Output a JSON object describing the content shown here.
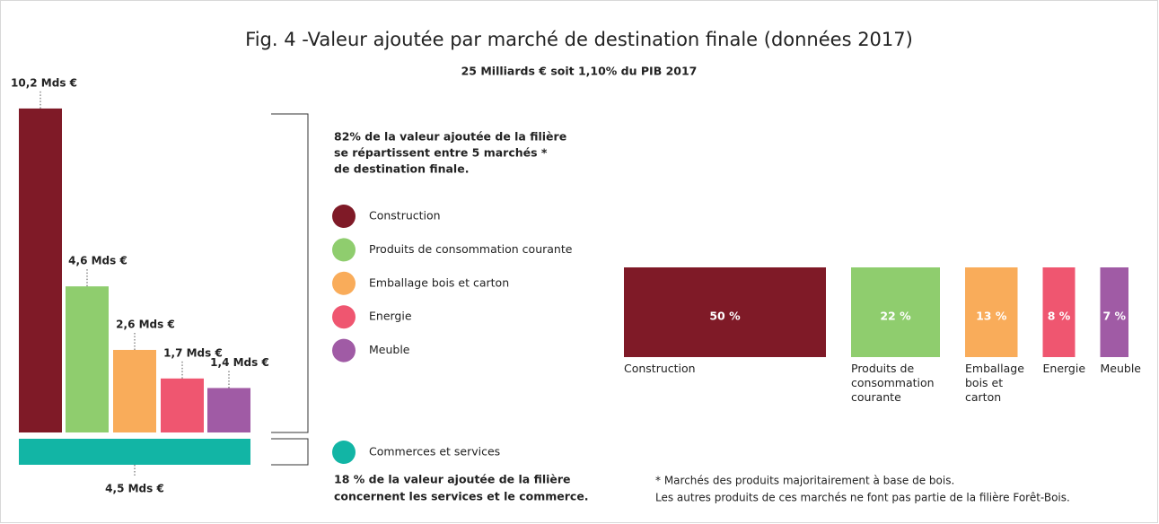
{
  "chart_data": [
    {
      "type": "bar",
      "title": "Fig. 4 -Valeur ajoutée par marché de destination finale (données 2017)",
      "subtitle": "25 Milliards € soit 1,10% du PIB 2017",
      "categories": [
        "Construction",
        "Produits de consommation courante",
        "Emballage bois et carton",
        "Energie",
        "Meuble"
      ],
      "values": [
        10.2,
        4.6,
        2.6,
        1.7,
        1.4
      ],
      "value_labels": [
        "10,2 Mds €",
        "4,6 Mds €",
        "2,6 Mds €",
        "1,7 Mds €",
        "1,4 Mds €"
      ],
      "colors": [
        "#7f1a27",
        "#8fcd6e",
        "#f9ac5a",
        "#ef5670",
        "#a05ba5"
      ],
      "annotation": [
        "82% de la valeur ajoutée de la filière",
        "se répartissent entre 5 marchés *",
        "de destination finale."
      ]
    },
    {
      "type": "hbar",
      "categories": [
        "Commerces et services"
      ],
      "values": [
        4.5
      ],
      "value_labels": [
        "4,5 Mds €"
      ],
      "color": "#12b5a5",
      "annotation": [
        "18 % de la valeur ajoutée de la filière",
        "concernent les services et le commerce."
      ]
    },
    {
      "type": "proportion",
      "categories": [
        "Construction",
        "Produits de consommation courante",
        "Emballage bois et carton",
        "Energie",
        "Meuble"
      ],
      "values": [
        50,
        22,
        13,
        8,
        7
      ],
      "value_labels": [
        "50 %",
        "22 %",
        "13 %",
        "8 %",
        "7 %"
      ],
      "colors": [
        "#7f1a27",
        "#8fcd6e",
        "#f9ac5a",
        "#ef5670",
        "#a05ba5"
      ],
      "note": [
        "* Marchés des produits majoritairement à base de bois.",
        "Les autres produits de ces marchés ne font pas partie de la filière Forêt-Bois."
      ]
    }
  ]
}
